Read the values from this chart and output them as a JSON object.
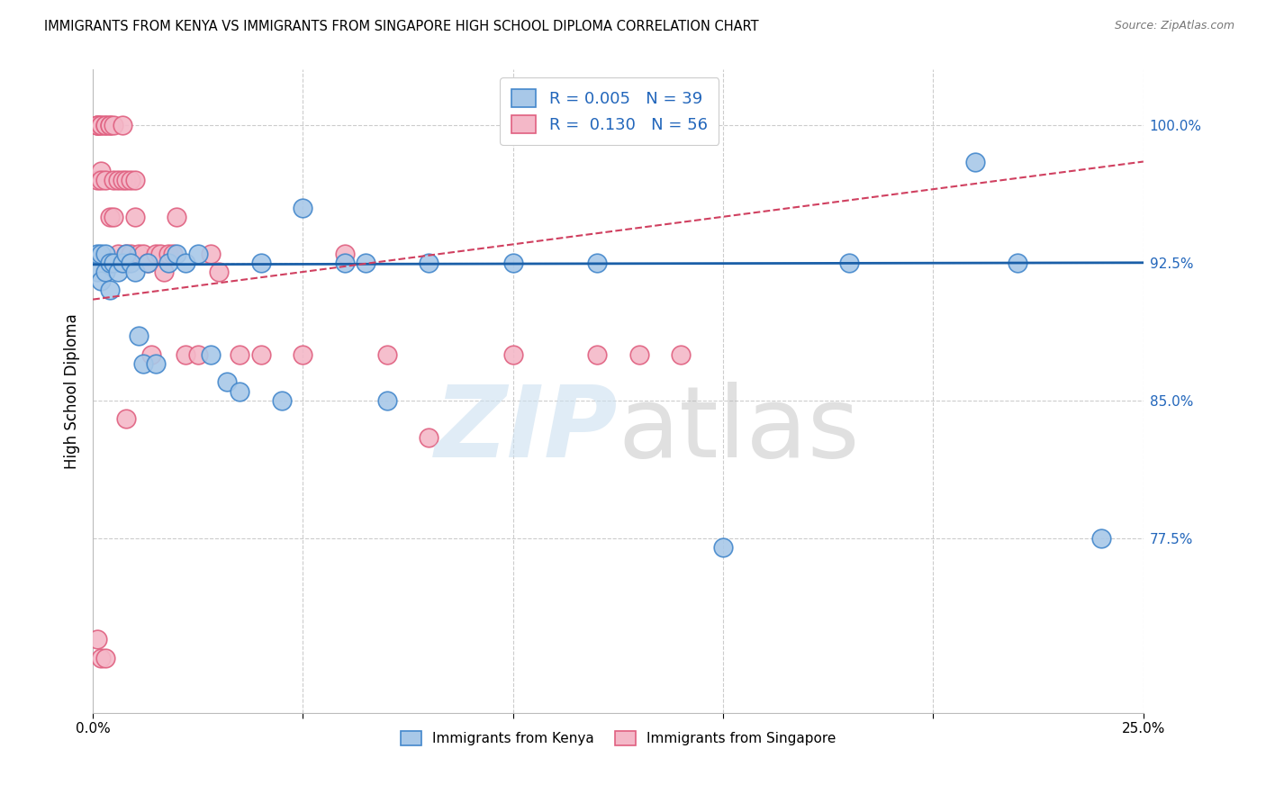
{
  "title": "IMMIGRANTS FROM KENYA VS IMMIGRANTS FROM SINGAPORE HIGH SCHOOL DIPLOMA CORRELATION CHART",
  "source": "Source: ZipAtlas.com",
  "ylabel": "High School Diploma",
  "xlim": [
    0.0,
    0.25
  ],
  "ylim": [
    0.68,
    1.03
  ],
  "ytick_positions": [
    0.775,
    0.85,
    0.925,
    1.0
  ],
  "ytick_labels": [
    "77.5%",
    "85.0%",
    "92.5%",
    "100.0%"
  ],
  "kenya_R": "0.005",
  "kenya_N": "39",
  "singapore_R": "0.130",
  "singapore_N": "56",
  "kenya_color": "#a8c8e8",
  "kenya_edge_color": "#4488cc",
  "singapore_color": "#f4b8c8",
  "singapore_edge_color": "#e06080",
  "kenya_line_color": "#1a5fa8",
  "singapore_line_color": "#d04060",
  "kenya_x": [
    0.001,
    0.001,
    0.002,
    0.002,
    0.003,
    0.003,
    0.004,
    0.004,
    0.005,
    0.006,
    0.007,
    0.008,
    0.009,
    0.01,
    0.011,
    0.012,
    0.013,
    0.015,
    0.018,
    0.02,
    0.022,
    0.025,
    0.028,
    0.032,
    0.035,
    0.04,
    0.045,
    0.05,
    0.06,
    0.065,
    0.07,
    0.08,
    0.1,
    0.12,
    0.15,
    0.18,
    0.21,
    0.22,
    0.24
  ],
  "kenya_y": [
    0.93,
    0.92,
    0.93,
    0.915,
    0.93,
    0.92,
    0.925,
    0.91,
    0.925,
    0.92,
    0.925,
    0.93,
    0.925,
    0.92,
    0.885,
    0.87,
    0.925,
    0.87,
    0.925,
    0.93,
    0.925,
    0.93,
    0.875,
    0.86,
    0.855,
    0.925,
    0.85,
    0.955,
    0.925,
    0.925,
    0.85,
    0.925,
    0.925,
    0.925,
    0.77,
    0.925,
    0.98,
    0.925,
    0.775
  ],
  "singapore_x": [
    0.001,
    0.001,
    0.001,
    0.001,
    0.002,
    0.002,
    0.002,
    0.002,
    0.003,
    0.003,
    0.003,
    0.004,
    0.004,
    0.004,
    0.005,
    0.005,
    0.005,
    0.006,
    0.006,
    0.007,
    0.007,
    0.008,
    0.008,
    0.008,
    0.009,
    0.009,
    0.01,
    0.01,
    0.011,
    0.012,
    0.013,
    0.014,
    0.015,
    0.016,
    0.017,
    0.018,
    0.019,
    0.02,
    0.022,
    0.025,
    0.028,
    0.03,
    0.035,
    0.04,
    0.05,
    0.06,
    0.07,
    0.08,
    0.1,
    0.12,
    0.001,
    0.002,
    0.003,
    0.008,
    0.13,
    0.14
  ],
  "singapore_y": [
    1.0,
    1.0,
    1.0,
    0.97,
    1.0,
    1.0,
    0.975,
    0.97,
    1.0,
    1.0,
    0.97,
    1.0,
    1.0,
    0.95,
    1.0,
    0.97,
    0.95,
    0.97,
    0.93,
    0.97,
    1.0,
    0.97,
    0.93,
    0.925,
    0.93,
    0.97,
    0.97,
    0.95,
    0.93,
    0.93,
    0.925,
    0.875,
    0.93,
    0.93,
    0.92,
    0.93,
    0.93,
    0.95,
    0.875,
    0.875,
    0.93,
    0.92,
    0.875,
    0.875,
    0.875,
    0.93,
    0.875,
    0.83,
    0.875,
    0.875,
    0.72,
    0.71,
    0.71,
    0.84,
    0.875,
    0.875
  ],
  "kenya_line_x": [
    0.0,
    0.25
  ],
  "kenya_line_y": [
    0.924,
    0.925
  ],
  "singapore_line_x": [
    0.0,
    0.25
  ],
  "singapore_line_y": [
    0.905,
    0.98
  ]
}
